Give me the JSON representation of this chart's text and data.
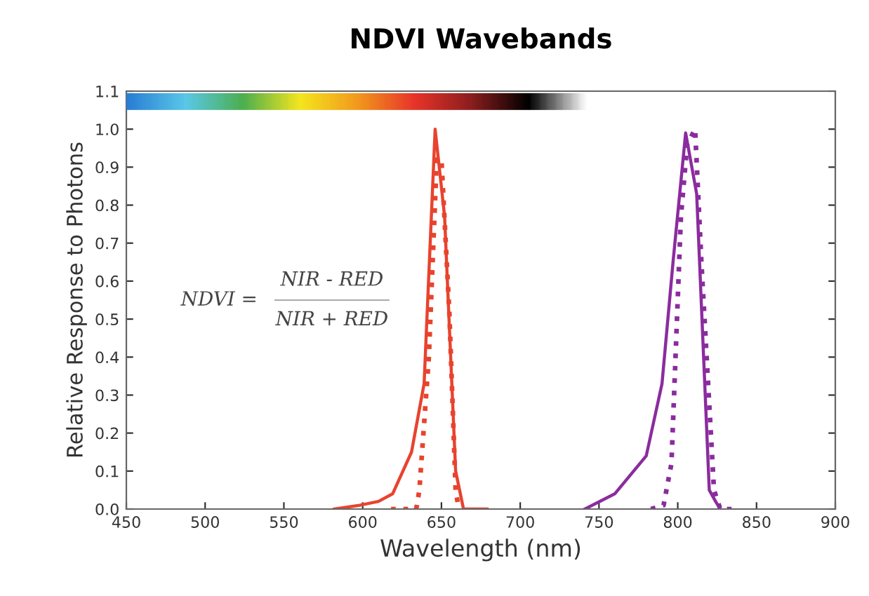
{
  "chart_data": {
    "type": "line",
    "title": "NDVI Wavebands",
    "xlabel": "Wavelength (nm)",
    "ylabel": "Relative Response to Photons",
    "annotations": [
      "NDVI =",
      "NIR - RED",
      "NIR + RED"
    ],
    "xlim": [
      450,
      900
    ],
    "xticks": [
      450,
      500,
      550,
      600,
      650,
      700,
      750,
      800,
      850,
      900
    ],
    "ylim": [
      0,
      1.1
    ],
    "yticks": [
      {
        "value": 0,
        "label": "0.0"
      },
      {
        "value": 0.1,
        "label": "0.1"
      },
      {
        "value": 0.2,
        "label": "0.2"
      },
      {
        "value": 0.3,
        "label": "0.3"
      },
      {
        "value": 0.4,
        "label": "0.4"
      },
      {
        "value": 0.5,
        "label": "0.5"
      },
      {
        "value": 0.6,
        "label": "0.6"
      },
      {
        "value": 0.7,
        "label": "0.7"
      },
      {
        "value": 0.8,
        "label": "0.8"
      },
      {
        "value": 0.9,
        "label": "0.9"
      },
      {
        "value": 1.0,
        "label": "1.0"
      },
      {
        "value": 1.1,
        "label": "1.1"
      }
    ],
    "grid": false,
    "legend": false,
    "series": [
      {
        "color": "#e8432e",
        "line_style": "solid",
        "x": [
          582,
          598,
          610,
          619,
          631,
          639,
          646,
          652,
          659,
          664,
          679
        ],
        "values": [
          0,
          0.01,
          0.02,
          0.04,
          0.15,
          0.33,
          1.0,
          0.77,
          0.1,
          0.0,
          0
        ]
      },
      {
        "color": "#e8432e",
        "line_style": "dotted",
        "x": [
          618,
          634,
          636,
          642,
          647,
          650,
          655,
          659,
          661
        ],
        "values": [
          0,
          0,
          0.05,
          0.4,
          0.92,
          0.92,
          0.52,
          0.05,
          0
        ]
      },
      {
        "color": "#8b2c9e",
        "line_style": "solid",
        "x": [
          741,
          760,
          780,
          790,
          797,
          805,
          812,
          820,
          824,
          827
        ],
        "values": [
          0,
          0.04,
          0.14,
          0.33,
          0.65,
          0.99,
          0.83,
          0.05,
          0.02,
          0
        ]
      },
      {
        "color": "#8b2c9e",
        "line_style": "dotted",
        "x": [
          783,
          791,
          796,
          802,
          806,
          811,
          815,
          823,
          827,
          839
        ],
        "values": [
          0,
          0.01,
          0.12,
          0.77,
          0.96,
          1.0,
          0.65,
          0.05,
          0,
          0
        ]
      }
    ]
  }
}
